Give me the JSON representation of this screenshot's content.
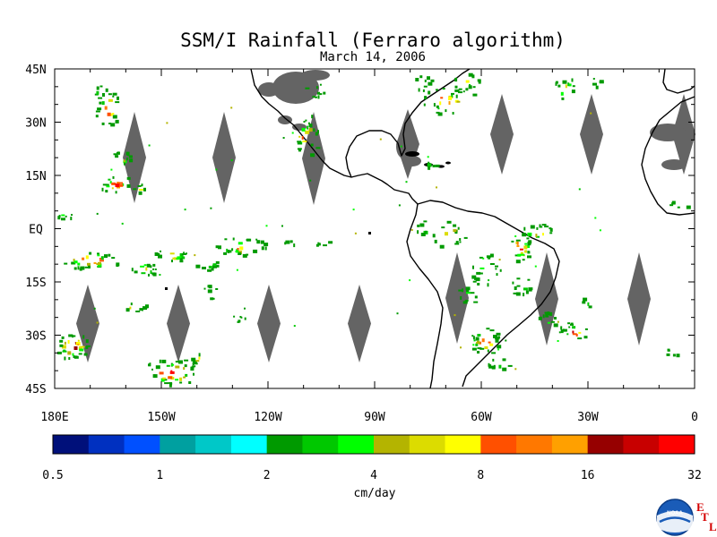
{
  "title": "SSM/I Rainfall (Ferraro algorithm)",
  "subtitle": "March 14, 2006",
  "map": {
    "lat_labels": [
      "45N",
      "30N",
      "15N",
      "EQ",
      "15S",
      "30S",
      "45S"
    ],
    "lon_labels": [
      "180E",
      "150W",
      "120W",
      "90W",
      "60W",
      "30W",
      "0"
    ],
    "lat_range": [
      -45,
      45
    ],
    "lon_range": [
      -180,
      0
    ],
    "land_color": "#ffffff",
    "no_data_color": "#646464",
    "coastline_color": "#000000"
  },
  "colorbar": {
    "unit_label": "cm/day",
    "tick_labels": [
      "0.5",
      "1",
      "2",
      "4",
      "8",
      "16",
      "32"
    ],
    "colors": [
      "#00107a",
      "#0030c0",
      "#0050ff",
      "#00a0a0",
      "#00c8c8",
      "#00ffff",
      "#009a00",
      "#00c800",
      "#00ff00",
      "#b4b400",
      "#dcdc00",
      "#ffff00",
      "#ff5000",
      "#ff7800",
      "#ffa000",
      "#960000",
      "#c80000",
      "#ff0000"
    ]
  },
  "logo": {
    "text": "NOAA",
    "letters": [
      "E",
      "T",
      "L"
    ]
  }
}
